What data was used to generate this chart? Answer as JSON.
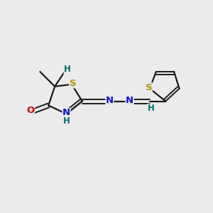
{
  "background_color": "#ebebeb",
  "bond_color": "#1a1a1a",
  "atom_colors": {
    "S": "#b8960c",
    "N": "#1414cc",
    "O": "#cc0000",
    "H": "#007070",
    "C": "#1a1a1a"
  },
  "figsize": [
    3.0,
    3.0
  ],
  "dpi": 100,
  "xlim": [
    0,
    10
  ],
  "ylim": [
    0,
    10
  ]
}
